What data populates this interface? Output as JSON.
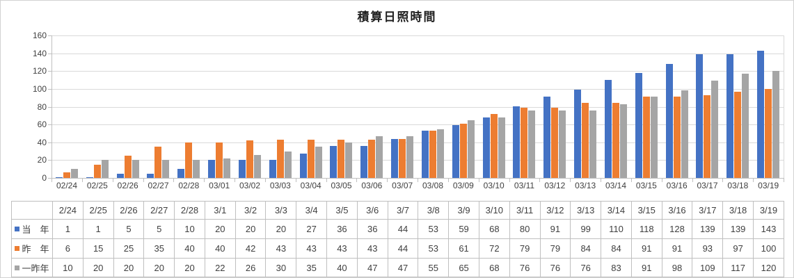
{
  "chart_data": {
    "type": "bar",
    "title": "積算日照時間",
    "categories": [
      "02/24",
      "02/25",
      "02/26",
      "02/27",
      "02/28",
      "03/01",
      "03/02",
      "03/03",
      "03/04",
      "03/05",
      "03/06",
      "03/07",
      "03/08",
      "03/09",
      "03/10",
      "03/11",
      "03/12",
      "03/13",
      "03/14",
      "03/15",
      "03/16",
      "03/17",
      "03/18",
      "03/19"
    ],
    "series": [
      {
        "name": "当　年",
        "color": "#4472C4",
        "values": [
          1,
          1,
          5,
          5,
          10,
          20,
          20,
          20,
          27,
          36,
          36,
          44,
          53,
          59,
          68,
          80,
          91,
          99,
          110,
          118,
          128,
          139,
          139,
          143
        ]
      },
      {
        "name": "昨　年",
        "color": "#ED7D31",
        "values": [
          6,
          15,
          25,
          35,
          40,
          40,
          42,
          43,
          43,
          43,
          43,
          44,
          53,
          61,
          72,
          79,
          79,
          84,
          84,
          91,
          91,
          93,
          97,
          100
        ]
      },
      {
        "name": "一昨年",
        "color": "#A5A5A5",
        "values": [
          10,
          20,
          20,
          20,
          20,
          22,
          26,
          30,
          35,
          40,
          47,
          47,
          55,
          65,
          68,
          76,
          76,
          76,
          83,
          91,
          98,
          109,
          117,
          120
        ]
      }
    ],
    "xlabel": "",
    "ylabel": "",
    "ylim": [
      0,
      160
    ],
    "y_step": 20,
    "y_tick_labels": [
      "0",
      "20",
      "40",
      "60",
      "80",
      "100",
      "120",
      "140",
      "160"
    ],
    "grid": true,
    "legend_position": "data-table-left",
    "data_table": {
      "column_headers": [
        "2/24",
        "2/25",
        "2/26",
        "2/27",
        "2/28",
        "3/1",
        "3/2",
        "3/3",
        "3/4",
        "3/5",
        "3/6",
        "3/7",
        "3/8",
        "3/9",
        "3/10",
        "3/11",
        "3/12",
        "3/13",
        "3/14",
        "3/15",
        "3/16",
        "3/17",
        "3/18",
        "3/19"
      ]
    },
    "colors": {
      "gridline": "#d9d9d9",
      "axis_line": "#bfbfbf",
      "table_border": "#bfbfbf",
      "text": "#3f3f3f"
    }
  }
}
